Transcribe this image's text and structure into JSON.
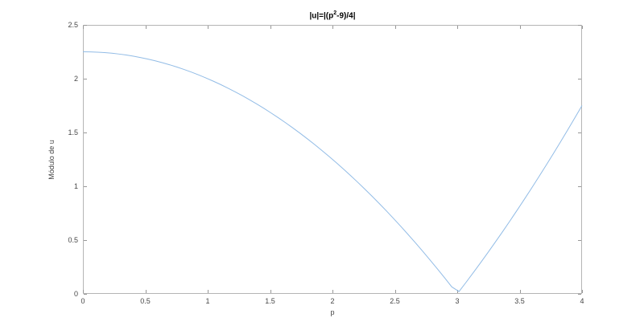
{
  "figure": {
    "background": "#ffffff",
    "title_parts": {
      "pre": "|u|=|(p",
      "sup": "2",
      "post": "-9)/4|"
    }
  },
  "chart_data": {
    "type": "line",
    "title": "|u|=|(p^2-9)/4|",
    "xlabel": "p",
    "ylabel": "Módulo de u",
    "xlim": [
      0,
      4
    ],
    "ylim": [
      0,
      2.5
    ],
    "xticks": [
      0,
      0.5,
      1,
      1.5,
      2,
      2.5,
      3,
      3.5,
      4
    ],
    "yticks": [
      0,
      0.5,
      1,
      1.5,
      2,
      2.5
    ],
    "grid": false,
    "legend": null,
    "box": true,
    "tick_direction": "in",
    "axis_box_color": "#b5b5b5",
    "tick_mark_color": "#979797",
    "tick_label_color": "#464646",
    "title_color": "#000000",
    "series": [
      {
        "name": "|u| = |(p^2-9)/4|",
        "expression": "Math.abs((p*p-9)/4)",
        "samples": 70,
        "color": "#92bce6",
        "line_width": 1,
        "key_points": {
          "x": [
            0,
            0.5,
            1,
            1.5,
            2,
            2.5,
            3,
            3.5,
            4
          ],
          "y": [
            2.25,
            2.1875,
            2.0,
            1.6875,
            1.25,
            0.6875,
            0.0,
            0.8125,
            1.75
          ]
        }
      }
    ]
  }
}
